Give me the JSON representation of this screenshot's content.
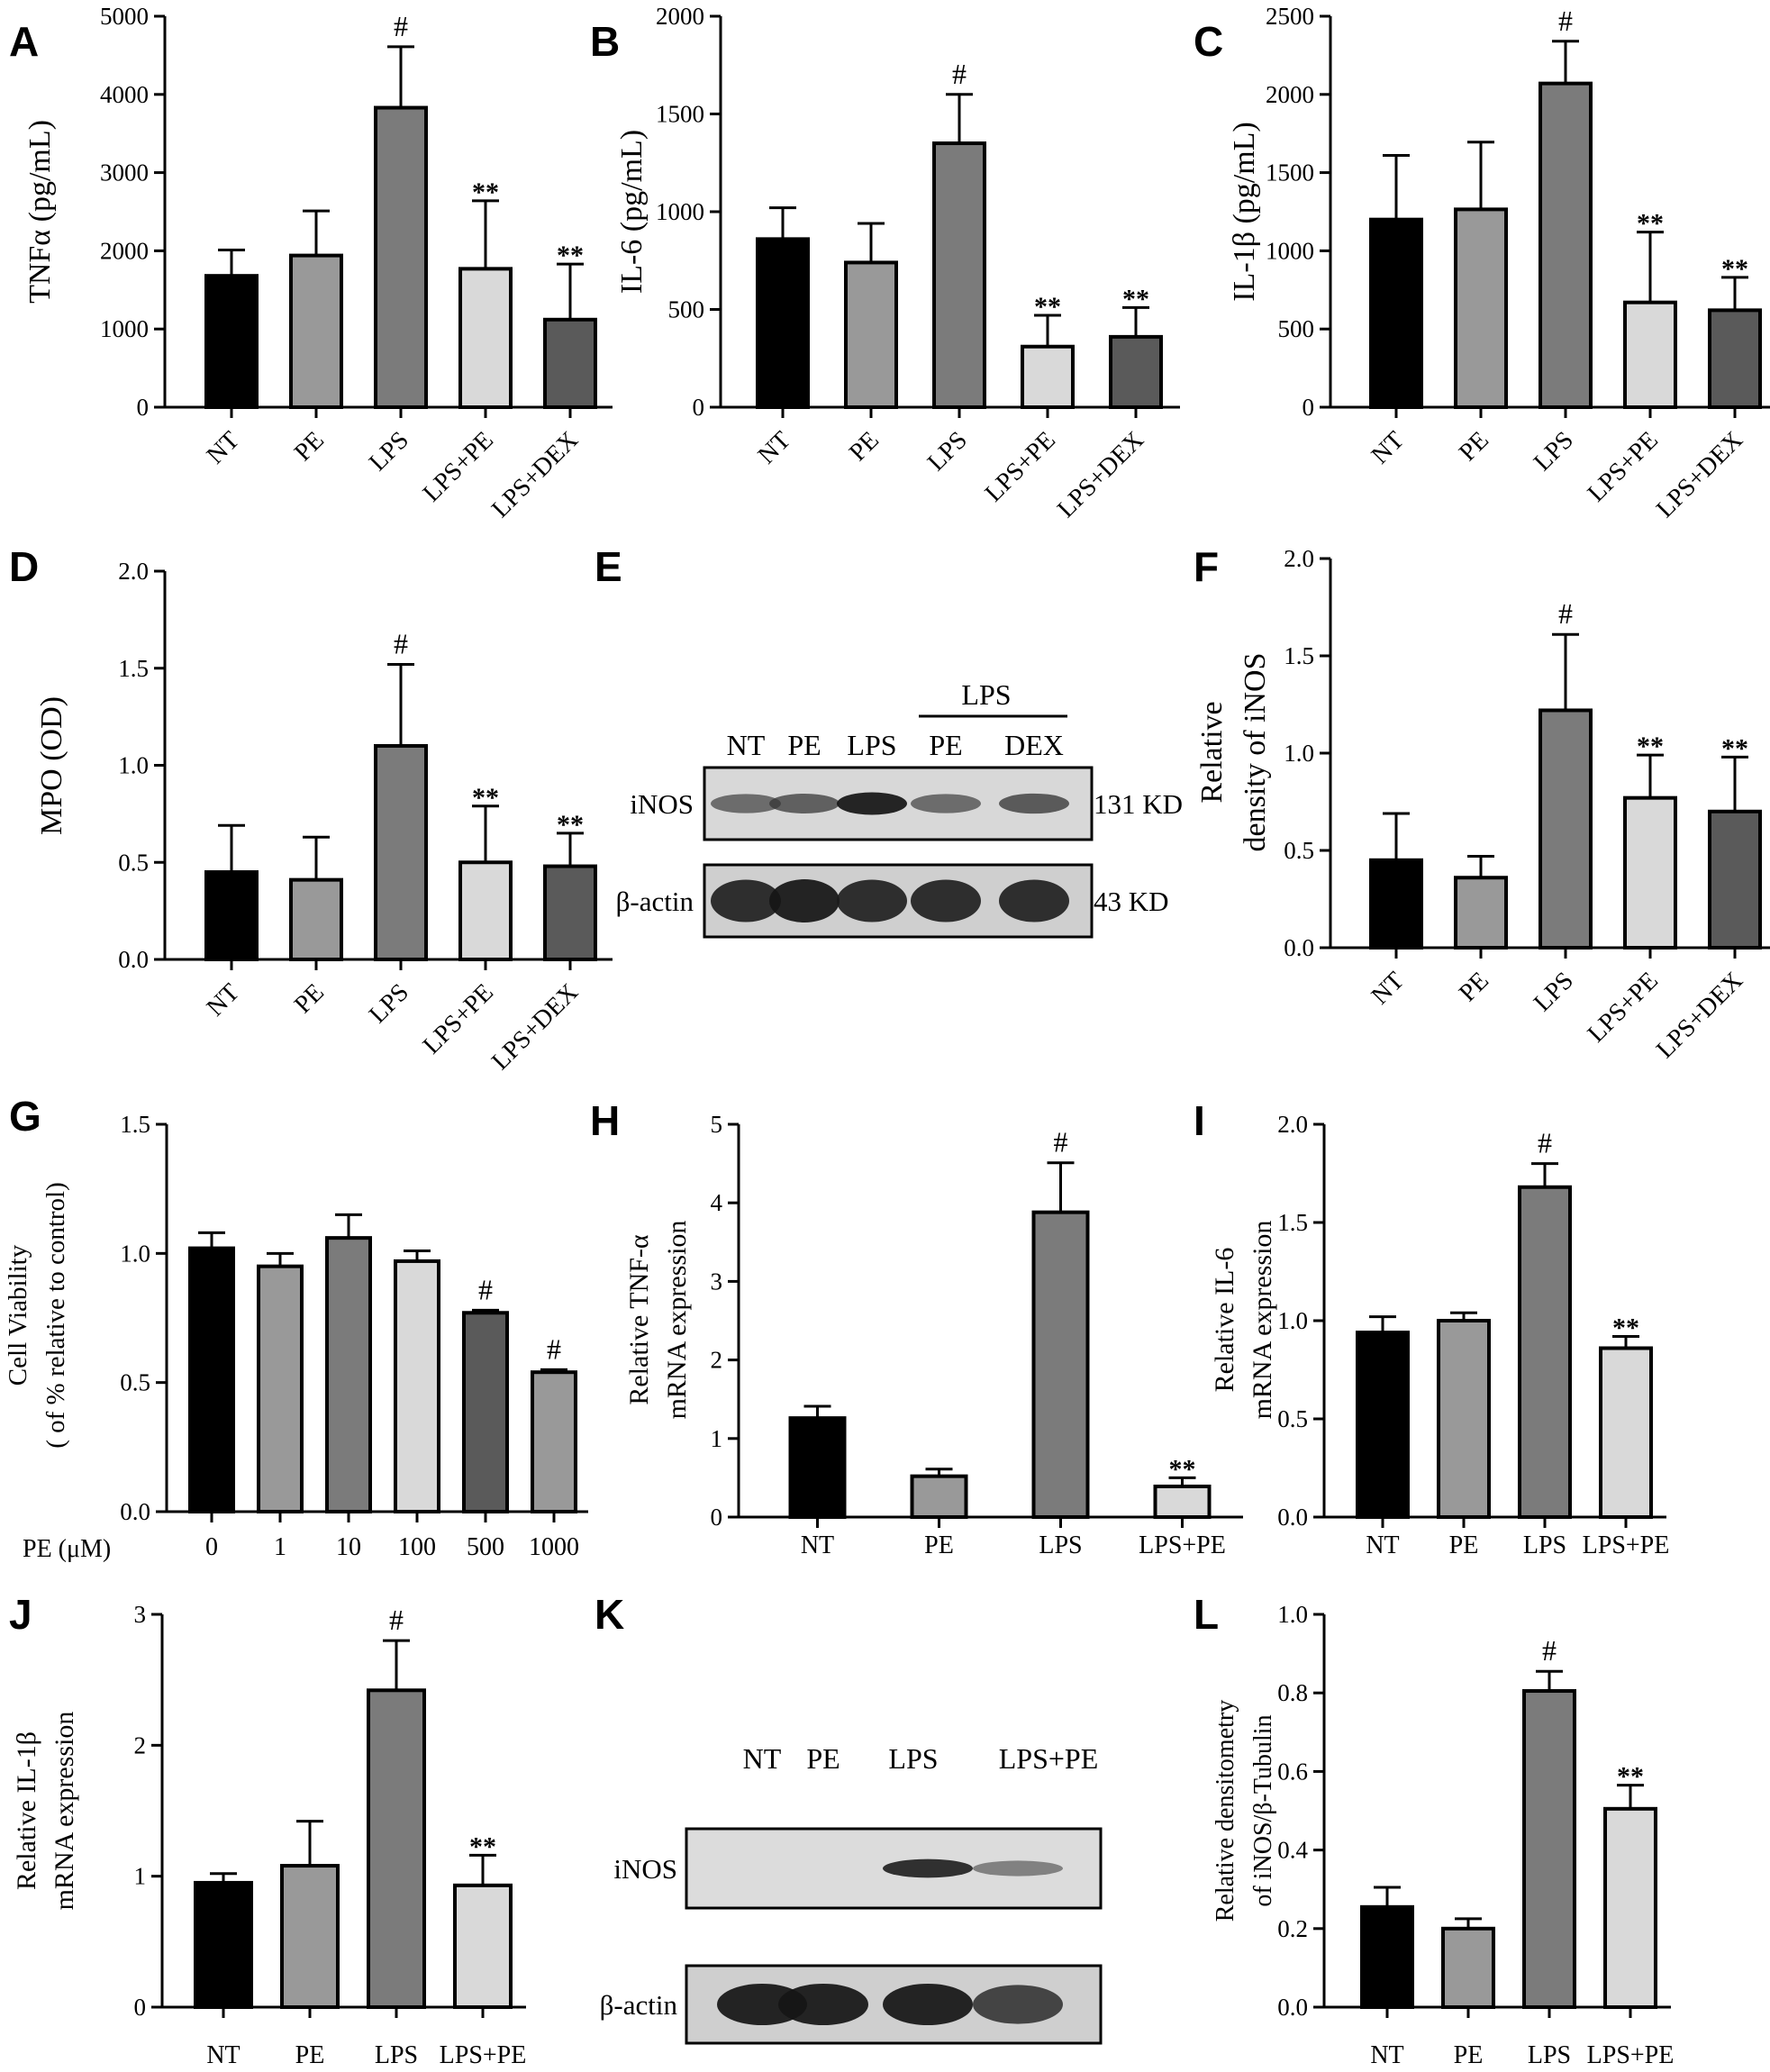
{
  "chart_data": [
    {
      "panel": "A",
      "type": "bar",
      "categories": [
        "NT",
        "PE",
        "LPS",
        "LPS+PE",
        "LPS+DEX"
      ],
      "values": [
        1680,
        1940,
        3830,
        1770,
        1120
      ],
      "errors": [
        330,
        570,
        780,
        870,
        710
      ],
      "annotations": [
        "",
        "",
        "#",
        "**",
        "**"
      ],
      "ylabel": "TNFα (pg/mL)",
      "ylim": [
        0,
        5000
      ],
      "yticks": [
        "0",
        "1000",
        "2000",
        "3000",
        "4000",
        "5000"
      ],
      "xtick_rotation": true,
      "colors": [
        "#000000",
        "#999999",
        "#7b7b7b",
        "#d9d9d9",
        "#5a5a5a"
      ]
    },
    {
      "panel": "B",
      "type": "bar",
      "categories": [
        "NT",
        "PE",
        "LPS",
        "LPS+PE",
        "LPS+DEX"
      ],
      "values": [
        860,
        740,
        1350,
        310,
        360
      ],
      "errors": [
        160,
        200,
        250,
        160,
        150
      ],
      "annotations": [
        "",
        "",
        "#",
        "**",
        "**"
      ],
      "ylabel": "IL-6 (pg/mL)",
      "ylim": [
        0,
        2000
      ],
      "yticks": [
        "0",
        "500",
        "1000",
        "1500",
        "2000"
      ],
      "xtick_rotation": true,
      "colors": [
        "#000000",
        "#999999",
        "#7b7b7b",
        "#d9d9d9",
        "#5a5a5a"
      ]
    },
    {
      "panel": "C",
      "type": "bar",
      "categories": [
        "NT",
        "PE",
        "LPS",
        "LPS+PE",
        "LPS+DEX"
      ],
      "values": [
        1200,
        1265,
        2070,
        670,
        620
      ],
      "errors": [
        410,
        430,
        270,
        450,
        210
      ],
      "annotations": [
        "",
        "",
        "#",
        "**",
        "**"
      ],
      "ylabel": "IL-1β (pg/mL)",
      "ylim": [
        0,
        2500
      ],
      "yticks": [
        "0",
        "500",
        "1000",
        "1500",
        "2000",
        "2500"
      ],
      "xtick_rotation": true,
      "colors": [
        "#000000",
        "#999999",
        "#7b7b7b",
        "#d9d9d9",
        "#5a5a5a"
      ]
    },
    {
      "panel": "D",
      "type": "bar",
      "categories": [
        "NT",
        "PE",
        "LPS",
        "LPS+PE",
        "LPS+DEX"
      ],
      "values": [
        0.45,
        0.41,
        1.1,
        0.5,
        0.48
      ],
      "errors": [
        0.24,
        0.22,
        0.42,
        0.29,
        0.17
      ],
      "annotations": [
        "",
        "",
        "#",
        "**",
        "**"
      ],
      "ylabel": "MPO (OD)",
      "ylim": [
        0,
        2.0
      ],
      "yticks": [
        "0.0",
        "0.5",
        "1.0",
        "1.5",
        "2.0"
      ],
      "xtick_rotation": true,
      "colors": [
        "#000000",
        "#999999",
        "#7b7b7b",
        "#d9d9d9",
        "#5a5a5a"
      ]
    },
    {
      "panel": "F",
      "type": "bar",
      "categories": [
        "NT",
        "PE",
        "LPS",
        "LPS+PE",
        "LPS+DEX"
      ],
      "values": [
        0.45,
        0.36,
        1.22,
        0.77,
        0.7
      ],
      "errors": [
        0.24,
        0.11,
        0.39,
        0.22,
        0.28
      ],
      "annotations": [
        "",
        "",
        "#",
        "**",
        "**"
      ],
      "ylabel": [
        "Relative",
        "density of iNOS"
      ],
      "ylim": [
        0,
        2.0
      ],
      "yticks": [
        "0.0",
        "0.5",
        "1.0",
        "1.5",
        "2.0"
      ],
      "xtick_rotation": true,
      "colors": [
        "#000000",
        "#999999",
        "#7b7b7b",
        "#d9d9d9",
        "#5a5a5a"
      ]
    },
    {
      "panel": "G",
      "type": "bar",
      "categories": [
        "0",
        "1",
        "10",
        "100",
        "500",
        "1000"
      ],
      "values": [
        1.02,
        0.95,
        1.06,
        0.97,
        0.77,
        0.54
      ],
      "errors": [
        0.06,
        0.05,
        0.09,
        0.04,
        0.01,
        0.01
      ],
      "annotations": [
        "",
        "",
        "",
        "",
        "#",
        "#"
      ],
      "ylabel": [
        "Cell Viability",
        "( of % relative to control)"
      ],
      "xlabel": "PE (μM)",
      "ylim": [
        0,
        1.5
      ],
      "yticks": [
        "0.0",
        "0.5",
        "1.0",
        "1.5"
      ],
      "xtick_rotation": false,
      "colors": [
        "#000000",
        "#999999",
        "#7b7b7b",
        "#d9d9d9",
        "#5a5a5a",
        "#999999"
      ]
    },
    {
      "panel": "H",
      "type": "bar",
      "categories": [
        "NT",
        "PE",
        "LPS",
        "LPS+PE"
      ],
      "values": [
        1.26,
        0.52,
        3.88,
        0.39
      ],
      "errors": [
        0.15,
        0.09,
        0.63,
        0.11
      ],
      "annotations": [
        "",
        "",
        "#",
        "**"
      ],
      "ylabel": [
        "Relative TNF-α",
        "mRNA expression"
      ],
      "ylim": [
        0,
        5
      ],
      "yticks": [
        "0",
        "1",
        "2",
        "3",
        "4",
        "5"
      ],
      "xtick_rotation": false,
      "colors": [
        "#000000",
        "#999999",
        "#7b7b7b",
        "#d9d9d9"
      ]
    },
    {
      "panel": "I",
      "type": "bar",
      "categories": [
        "NT",
        "PE",
        "LPS",
        "LPS+PE"
      ],
      "values": [
        0.94,
        1.0,
        1.68,
        0.86
      ],
      "errors": [
        0.08,
        0.04,
        0.12,
        0.06
      ],
      "annotations": [
        "",
        "",
        "#",
        "**"
      ],
      "ylabel": [
        "Relative IL-6",
        "mRNA expression"
      ],
      "ylim": [
        0,
        2.0
      ],
      "yticks": [
        "0.0",
        "0.5",
        "1.0",
        "1.5",
        "2.0"
      ],
      "xtick_rotation": false,
      "colors": [
        "#000000",
        "#999999",
        "#7b7b7b",
        "#d9d9d9"
      ]
    },
    {
      "panel": "J",
      "type": "bar",
      "categories": [
        "NT",
        "PE",
        "LPS",
        "LPS+PE"
      ],
      "values": [
        0.95,
        1.08,
        2.42,
        0.93
      ],
      "errors": [
        0.07,
        0.34,
        0.38,
        0.23
      ],
      "annotations": [
        "",
        "",
        "#",
        "**"
      ],
      "ylabel": [
        "Relative IL-1β",
        "mRNA expression"
      ],
      "ylim": [
        0,
        3
      ],
      "yticks": [
        "0",
        "1",
        "2",
        "3"
      ],
      "xtick_rotation": false,
      "colors": [
        "#000000",
        "#999999",
        "#7b7b7b",
        "#d9d9d9"
      ]
    },
    {
      "panel": "L",
      "type": "bar",
      "categories": [
        "NT",
        "PE",
        "LPS",
        "LPS+PE"
      ],
      "values": [
        0.255,
        0.2,
        0.805,
        0.505
      ],
      "errors": [
        0.05,
        0.025,
        0.05,
        0.06
      ],
      "annotations": [
        "",
        "",
        "#",
        "**"
      ],
      "ylabel": [
        "Relative densitometry",
        "of iNOS/β-Tubulin"
      ],
      "ylim": [
        0,
        1.0
      ],
      "yticks": [
        "0.0",
        "0.2",
        "0.4",
        "0.6",
        "0.8",
        "1.0"
      ],
      "xtick_rotation": false,
      "colors": [
        "#000000",
        "#999999",
        "#7b7b7b",
        "#d9d9d9"
      ]
    }
  ],
  "blots": {
    "E": {
      "group_label": "LPS",
      "lanes": [
        "NT",
        "PE",
        "LPS",
        "PE",
        "DEX"
      ],
      "rows": [
        {
          "name": "iNOS",
          "size": "131 KD",
          "intensity": [
            0.55,
            0.62,
            0.9,
            0.55,
            0.65
          ]
        },
        {
          "name": "β-actin",
          "size": "43  KD",
          "intensity": [
            0.85,
            0.9,
            0.85,
            0.85,
            0.85
          ]
        }
      ]
    },
    "K": {
      "lanes": [
        "NT",
        "PE",
        "LPS",
        "LPS+PE"
      ],
      "rows": [
        {
          "name": "iNOS",
          "intensity": [
            0,
            0,
            0.85,
            0.45
          ]
        },
        {
          "name": "β-actin",
          "intensity": [
            0.9,
            0.9,
            0.9,
            0.75
          ]
        }
      ]
    }
  }
}
